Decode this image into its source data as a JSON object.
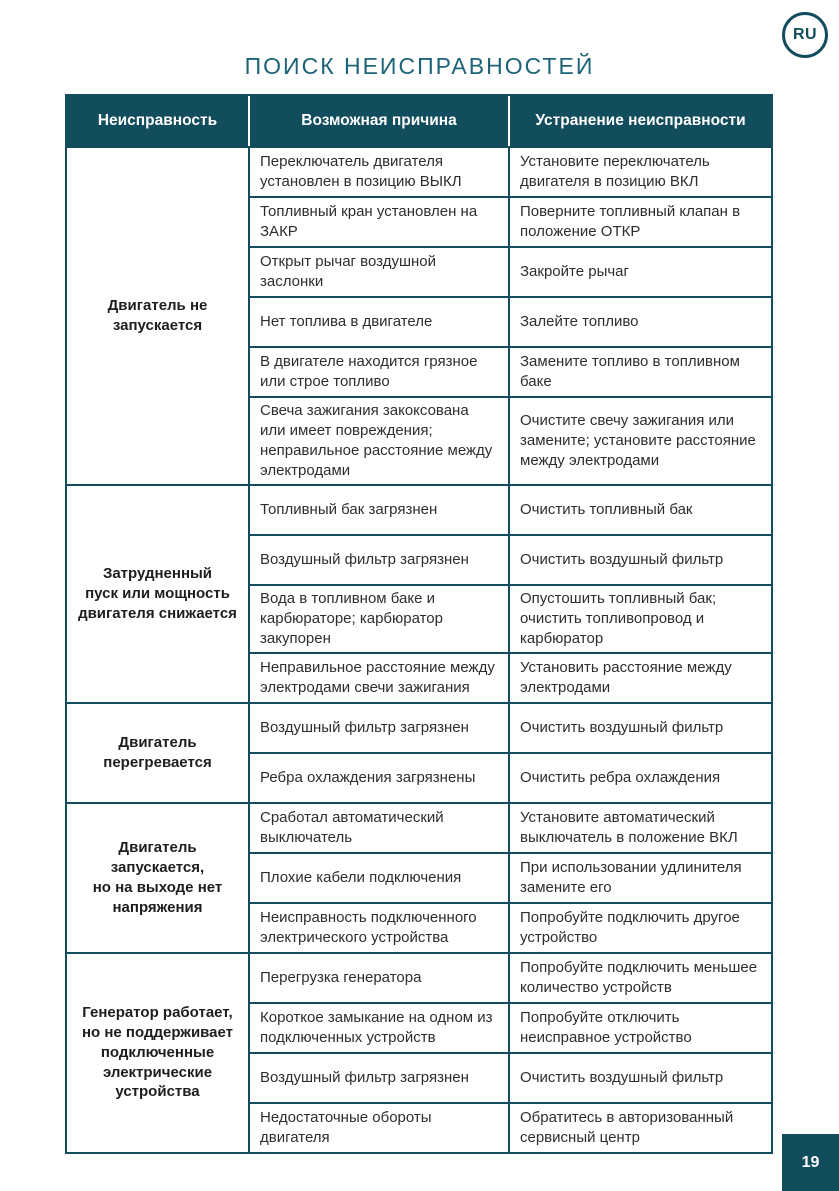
{
  "page": {
    "language_badge": "RU",
    "title": "ПОИСК НЕИСПРАВНОСТЕЙ",
    "page_number": "19"
  },
  "colors": {
    "accent_teal": "#114d5d",
    "title_teal": "#1e6478",
    "header_text": "#ffffff",
    "body_text": "#2e2e2e"
  },
  "table": {
    "headers": [
      "Неисправность",
      "Возможная причина",
      "Устранение неисправности"
    ],
    "groups": [
      {
        "fault": "Двигатель не\nзапускается",
        "rows": [
          {
            "cause": "Переключатель двигателя установлен в позицию ВЫКЛ",
            "remedy": "Установите переключатель двигателя в позицию ВКЛ"
          },
          {
            "cause": "Топливный кран установлен на ЗАКР",
            "remedy": "Поверните топливный клапан в положение ОТКР"
          },
          {
            "cause": "Открыт рычаг воздушной заслонки",
            "remedy": "Закройте рычаг"
          },
          {
            "cause": "Нет топлива в двигателе",
            "remedy": "Залейте топливо"
          },
          {
            "cause": "В двигателе находится грязное или строе топливо",
            "remedy": "Замените топливо в топливном баке"
          },
          {
            "cause": "Свеча зажигания закоксована или имеет повреждения; неправильное расстояние между электродами",
            "remedy": "Очистите свечу зажигания или замените; установите расстояние между электродами"
          }
        ]
      },
      {
        "fault": "Затрудненный\nпуск или мощность\nдвигателя снижается",
        "rows": [
          {
            "cause": "Топливный бак загрязнен",
            "remedy": "Очистить топливный бак"
          },
          {
            "cause": "Воздушный фильтр загрязнен",
            "remedy": "Очистить воздушный фильтр"
          },
          {
            "cause": "Вода в топливном баке и карбюраторе; карбюратор закупорен",
            "remedy": "Опустошить топливный бак; очистить топливопровод и карбюратор"
          },
          {
            "cause": "Неправильное расстояние между электродами свечи зажигания",
            "remedy": "Установить расстояние между электродами"
          }
        ]
      },
      {
        "fault": "Двигатель\nперегревается",
        "rows": [
          {
            "cause": "Воздушный фильтр загрязнен",
            "remedy": "Очистить воздушный фильтр"
          },
          {
            "cause": "Ребра охлаждения загрязнены",
            "remedy": "Очистить ребра охлаждения"
          }
        ]
      },
      {
        "fault": "Двигатель запускается,\nно на выходе нет\nнапряжения",
        "rows": [
          {
            "cause": "Сработал автоматический выключатель",
            "remedy": "Установите автоматический выключатель в положение ВКЛ"
          },
          {
            "cause": "Плохие кабели подключения",
            "remedy": "При использовании удлинителя замените его"
          },
          {
            "cause": "Неисправность подключенного электрического устройства",
            "remedy": "Попробуйте подключить другое устройство"
          }
        ]
      },
      {
        "fault": "Генератор работает,\nно не поддерживает\nподключенные\nэлектрические\nустройства",
        "rows": [
          {
            "cause": "Перегрузка генератора",
            "remedy": "Попробуйте подключить меньшее количество устройств"
          },
          {
            "cause": "Короткое замыкание на одном из подключенных устройств",
            "remedy": "Попробуйте отключить неисправное устройство"
          },
          {
            "cause": "Воздушный фильтр загрязнен",
            "remedy": "Очистить воздушный фильтр"
          },
          {
            "cause": "Недостаточные обороты двигателя",
            "remedy": "Обратитесь в авторизованный сервисный центр"
          }
        ]
      }
    ]
  }
}
